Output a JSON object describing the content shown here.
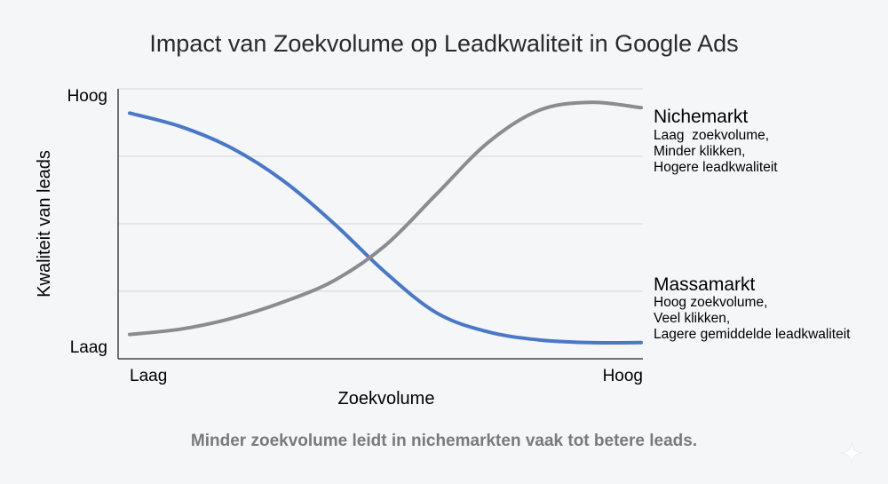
{
  "chart_data": {
    "type": "line",
    "title": "Impact van Zoekvolume op Leadkwaliteit in Google Ads",
    "xlabel": "Zoekvolume",
    "ylabel": "Kwaliteit van leads",
    "x_ticks": [
      "Laag",
      "Hoog"
    ],
    "y_ticks": [
      "Laag",
      "Hoog"
    ],
    "xlim": [
      0,
      100
    ],
    "ylim": [
      0,
      100
    ],
    "grid": "horizontal",
    "series": [
      {
        "name": "Massamarkt",
        "color": "#4a78c8",
        "x": [
          0,
          10,
          20,
          30,
          40,
          50,
          60,
          70,
          80,
          90,
          100
        ],
        "y": [
          91,
          86,
          78,
          66,
          50,
          32,
          17,
          10,
          7,
          6,
          6
        ],
        "label_lines": [
          "Hoog zoekvolume,",
          "Veel klikken,",
          "Lagere gemiddelde leadkwaliteit"
        ]
      },
      {
        "name": "Nichemarkt",
        "color": "#8a8d90",
        "x": [
          0,
          10,
          20,
          30,
          40,
          50,
          60,
          70,
          80,
          90,
          100
        ],
        "y": [
          9,
          11,
          15,
          21,
          29,
          42,
          61,
          80,
          92,
          95,
          93
        ],
        "label_lines": [
          "Laag  zoekvolume,",
          "Minder klikken,",
          "Hogere leadkwaliteit"
        ]
      }
    ],
    "caption": "Minder zoekvolume leidt in nichemarkten vaak tot betere leads."
  },
  "icons": {
    "corner": "sparkle-icon"
  }
}
